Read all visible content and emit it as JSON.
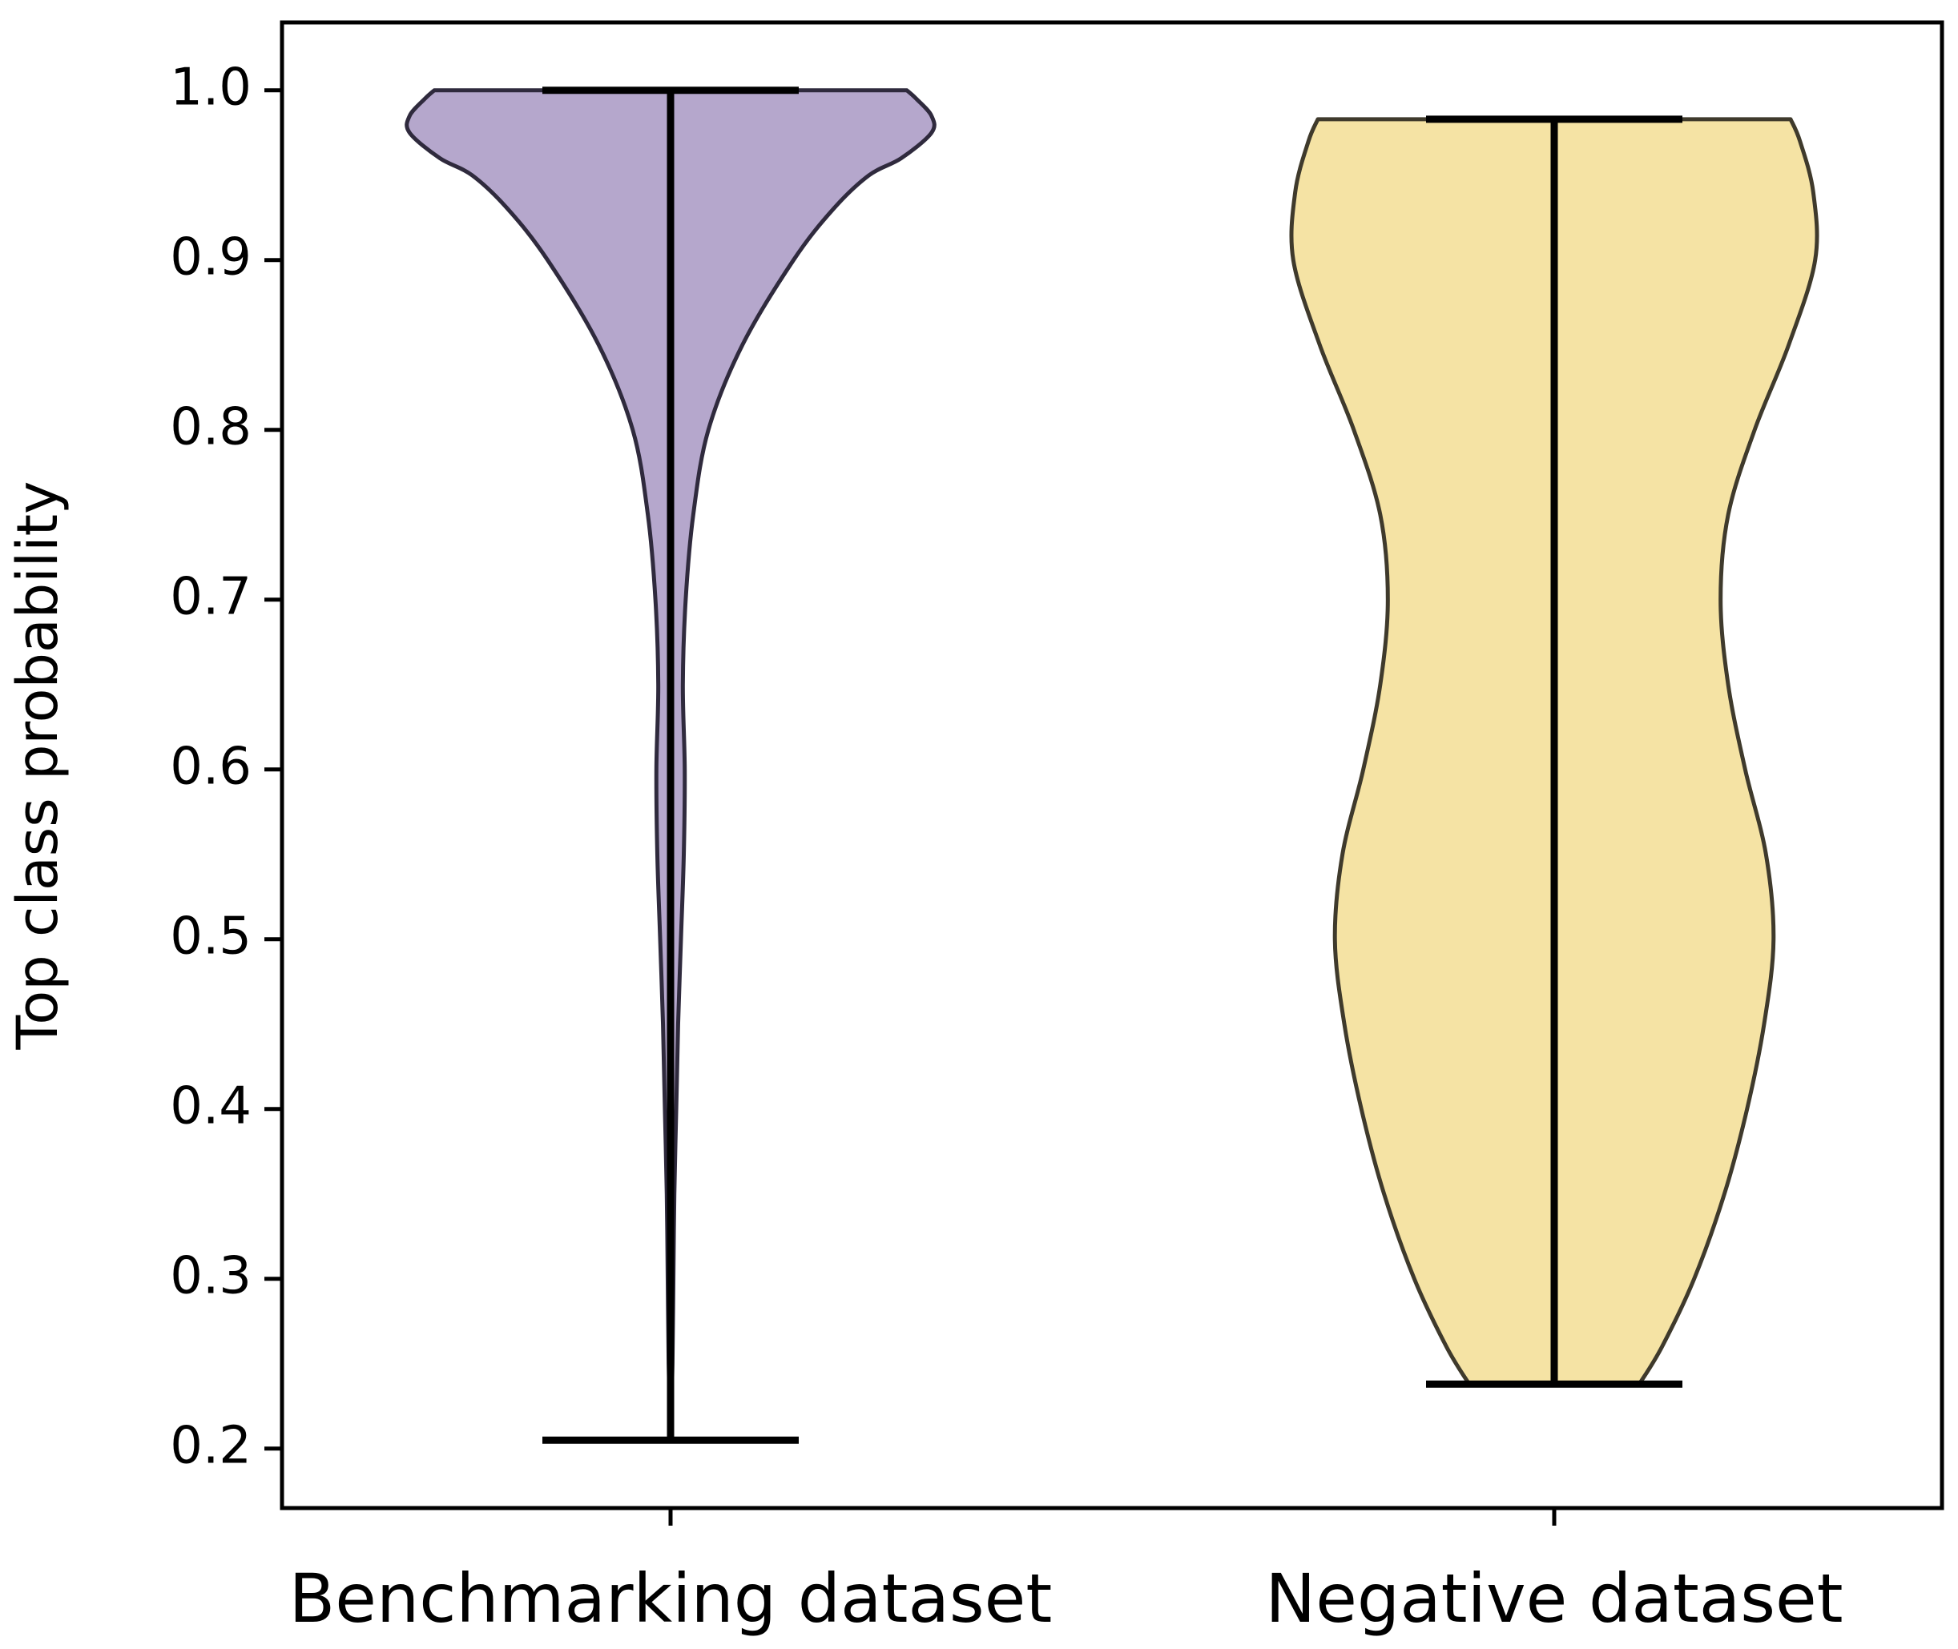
{
  "chart_data": {
    "type": "violin",
    "title": "",
    "xlabel": "",
    "ylabel": "Top class probability",
    "ylim": [
      0.165,
      1.04
    ],
    "yticks": [
      0.2,
      0.3,
      0.4,
      0.5,
      0.6,
      0.7,
      0.8,
      0.9,
      1.0
    ],
    "ytick_labels": [
      "0.2",
      "0.3",
      "0.4",
      "0.5",
      "0.6",
      "0.7",
      "0.8",
      "0.9",
      "1.0"
    ],
    "categories": [
      "Benchmarking dataset",
      "Negative dataset"
    ],
    "series": [
      {
        "name": "Benchmarking dataset",
        "fill": "#b5a7cc",
        "stroke": "#2f2a3d",
        "min": 0.205,
        "max": 1.0,
        "density_profile": [
          [
            0.205,
            0.0
          ],
          [
            0.25,
            0.01
          ],
          [
            0.3,
            0.015
          ],
          [
            0.35,
            0.02
          ],
          [
            0.4,
            0.03
          ],
          [
            0.45,
            0.04
          ],
          [
            0.5,
            0.055
          ],
          [
            0.55,
            0.07
          ],
          [
            0.6,
            0.075
          ],
          [
            0.65,
            0.065
          ],
          [
            0.7,
            0.08
          ],
          [
            0.75,
            0.12
          ],
          [
            0.8,
            0.2
          ],
          [
            0.85,
            0.38
          ],
          [
            0.9,
            0.65
          ],
          [
            0.93,
            0.86
          ],
          [
            0.95,
            1.05
          ],
          [
            0.96,
            1.22
          ],
          [
            0.975,
            1.38
          ],
          [
            0.985,
            1.38
          ],
          [
            0.995,
            1.3
          ],
          [
            1.0,
            1.25
          ]
        ]
      },
      {
        "name": "Negative dataset",
        "fill": "#f5e3a4",
        "stroke": "#3f3a2c",
        "min": 0.238,
        "max": 0.983,
        "density_profile": [
          [
            0.238,
            0.45
          ],
          [
            0.26,
            0.57
          ],
          [
            0.3,
            0.74
          ],
          [
            0.35,
            0.9
          ],
          [
            0.4,
            1.02
          ],
          [
            0.45,
            1.11
          ],
          [
            0.5,
            1.16
          ],
          [
            0.55,
            1.12
          ],
          [
            0.6,
            1.01
          ],
          [
            0.65,
            0.92
          ],
          [
            0.7,
            0.88
          ],
          [
            0.75,
            0.92
          ],
          [
            0.8,
            1.06
          ],
          [
            0.85,
            1.24
          ],
          [
            0.9,
            1.38
          ],
          [
            0.94,
            1.37
          ],
          [
            0.97,
            1.3
          ],
          [
            0.983,
            1.25
          ]
        ]
      }
    ]
  }
}
